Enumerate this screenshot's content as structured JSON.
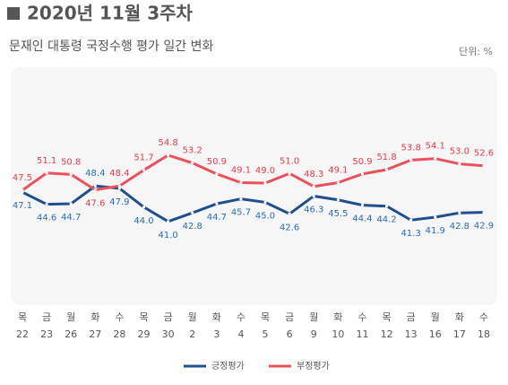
{
  "chart_data": {
    "type": "line",
    "title": "2020년 11월 3주차",
    "subtitle": "문재인 대통령 국정수행 평가 일간 변화",
    "unit_label": "단위: %",
    "categories": [
      {
        "weekday": "목",
        "date": "22"
      },
      {
        "weekday": "금",
        "date": "23"
      },
      {
        "weekday": "월",
        "date": "26"
      },
      {
        "weekday": "화",
        "date": "27"
      },
      {
        "weekday": "수",
        "date": "28"
      },
      {
        "weekday": "목",
        "date": "29"
      },
      {
        "weekday": "금",
        "date": "30"
      },
      {
        "weekday": "월",
        "date": "2"
      },
      {
        "weekday": "화",
        "date": "3"
      },
      {
        "weekday": "수",
        "date": "4"
      },
      {
        "weekday": "목",
        "date": "5"
      },
      {
        "weekday": "금",
        "date": "6"
      },
      {
        "weekday": "월",
        "date": "9"
      },
      {
        "weekday": "화",
        "date": "10"
      },
      {
        "weekday": "수",
        "date": "11"
      },
      {
        "weekday": "목",
        "date": "12"
      },
      {
        "weekday": "금",
        "date": "13"
      },
      {
        "weekday": "월",
        "date": "16"
      },
      {
        "weekday": "화",
        "date": "17"
      },
      {
        "weekday": "수",
        "date": "18"
      }
    ],
    "series": [
      {
        "name": "긍정평가",
        "color": "#1f4f8f",
        "label_color": "#2a6db3",
        "values": [
          47.1,
          44.6,
          44.7,
          48.4,
          47.9,
          44.0,
          41.0,
          42.8,
          44.7,
          45.7,
          45.0,
          42.6,
          46.3,
          45.5,
          44.4,
          44.2,
          41.3,
          41.9,
          42.8,
          42.9
        ],
        "value_labels": [
          "47.1",
          "44.6",
          "44.7",
          "48.4",
          "47.9",
          "44.0",
          "41.0",
          "42.8",
          "44.7",
          "45.7",
          "45.0",
          "42.6",
          "46.3",
          "45.5",
          "44.4",
          "44.2",
          "41.3",
          "41.9",
          "42.8",
          "42.9"
        ]
      },
      {
        "name": "부정평가",
        "color": "#e9525c",
        "label_color": "#e23e4a",
        "values": [
          47.5,
          51.1,
          50.8,
          47.6,
          48.4,
          51.7,
          54.8,
          53.2,
          50.9,
          49.1,
          49.0,
          51.0,
          48.3,
          49.1,
          50.9,
          51.8,
          53.8,
          54.1,
          53.0,
          52.6
        ],
        "value_labels": [
          "47.5",
          "51.1",
          "50.8",
          "47.6",
          "48.4",
          "51.7",
          "54.8",
          "53.2",
          "50.9",
          "49.1",
          "49.0",
          "51.0",
          "48.3",
          "49.1",
          "50.9",
          "51.8",
          "53.8",
          "54.1",
          "53.0",
          "52.6"
        ]
      }
    ],
    "ylim": [
      23.6,
      73.1
    ],
    "legend": "bottom"
  }
}
